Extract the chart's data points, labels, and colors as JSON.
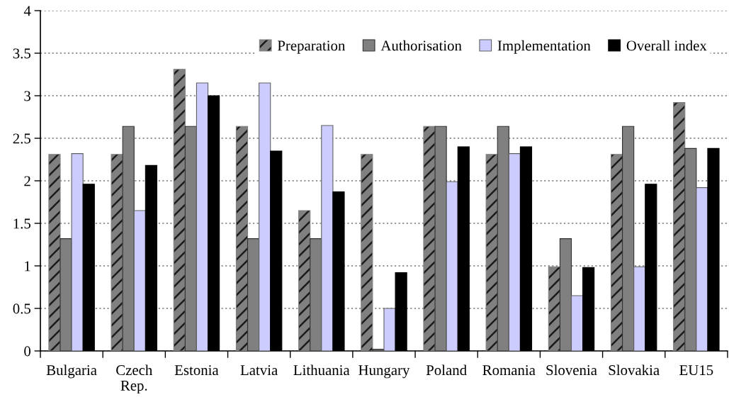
{
  "chart_data": {
    "type": "bar",
    "categories": [
      "Bulgaria",
      "Czech\nRep.",
      "Estonia",
      "Latvia",
      "Lithuania",
      "Hungary",
      "Poland",
      "Romania",
      "Slovenia",
      "Slovakia",
      "EU15"
    ],
    "series": [
      {
        "name": "Preparation",
        "color": "#808080",
        "values": [
          2.31,
          2.31,
          3.31,
          2.64,
          1.65,
          2.31,
          2.64,
          2.31,
          0.99,
          2.31,
          2.92
        ]
      },
      {
        "name": "Authorisation",
        "color": "#808080",
        "values": [
          1.32,
          2.64,
          2.64,
          1.32,
          1.32,
          0.02,
          2.64,
          2.64,
          1.32,
          2.64,
          2.38
        ]
      },
      {
        "name": "Implementation",
        "color": "#ccccff",
        "values": [
          2.32,
          1.65,
          3.15,
          3.15,
          2.65,
          0.5,
          1.99,
          2.32,
          0.65,
          0.99,
          1.92
        ]
      },
      {
        "name": "Overall index",
        "color": "#000000",
        "values": [
          1.96,
          2.18,
          3.0,
          2.35,
          1.87,
          0.92,
          2.4,
          2.4,
          0.98,
          1.96,
          2.38
        ]
      }
    ],
    "ylim": [
      0,
      4
    ],
    "yticks": [
      0,
      0.5,
      1,
      1.5,
      2,
      2.5,
      3,
      3.5,
      4
    ],
    "grid": "y",
    "legend": "top right"
  }
}
